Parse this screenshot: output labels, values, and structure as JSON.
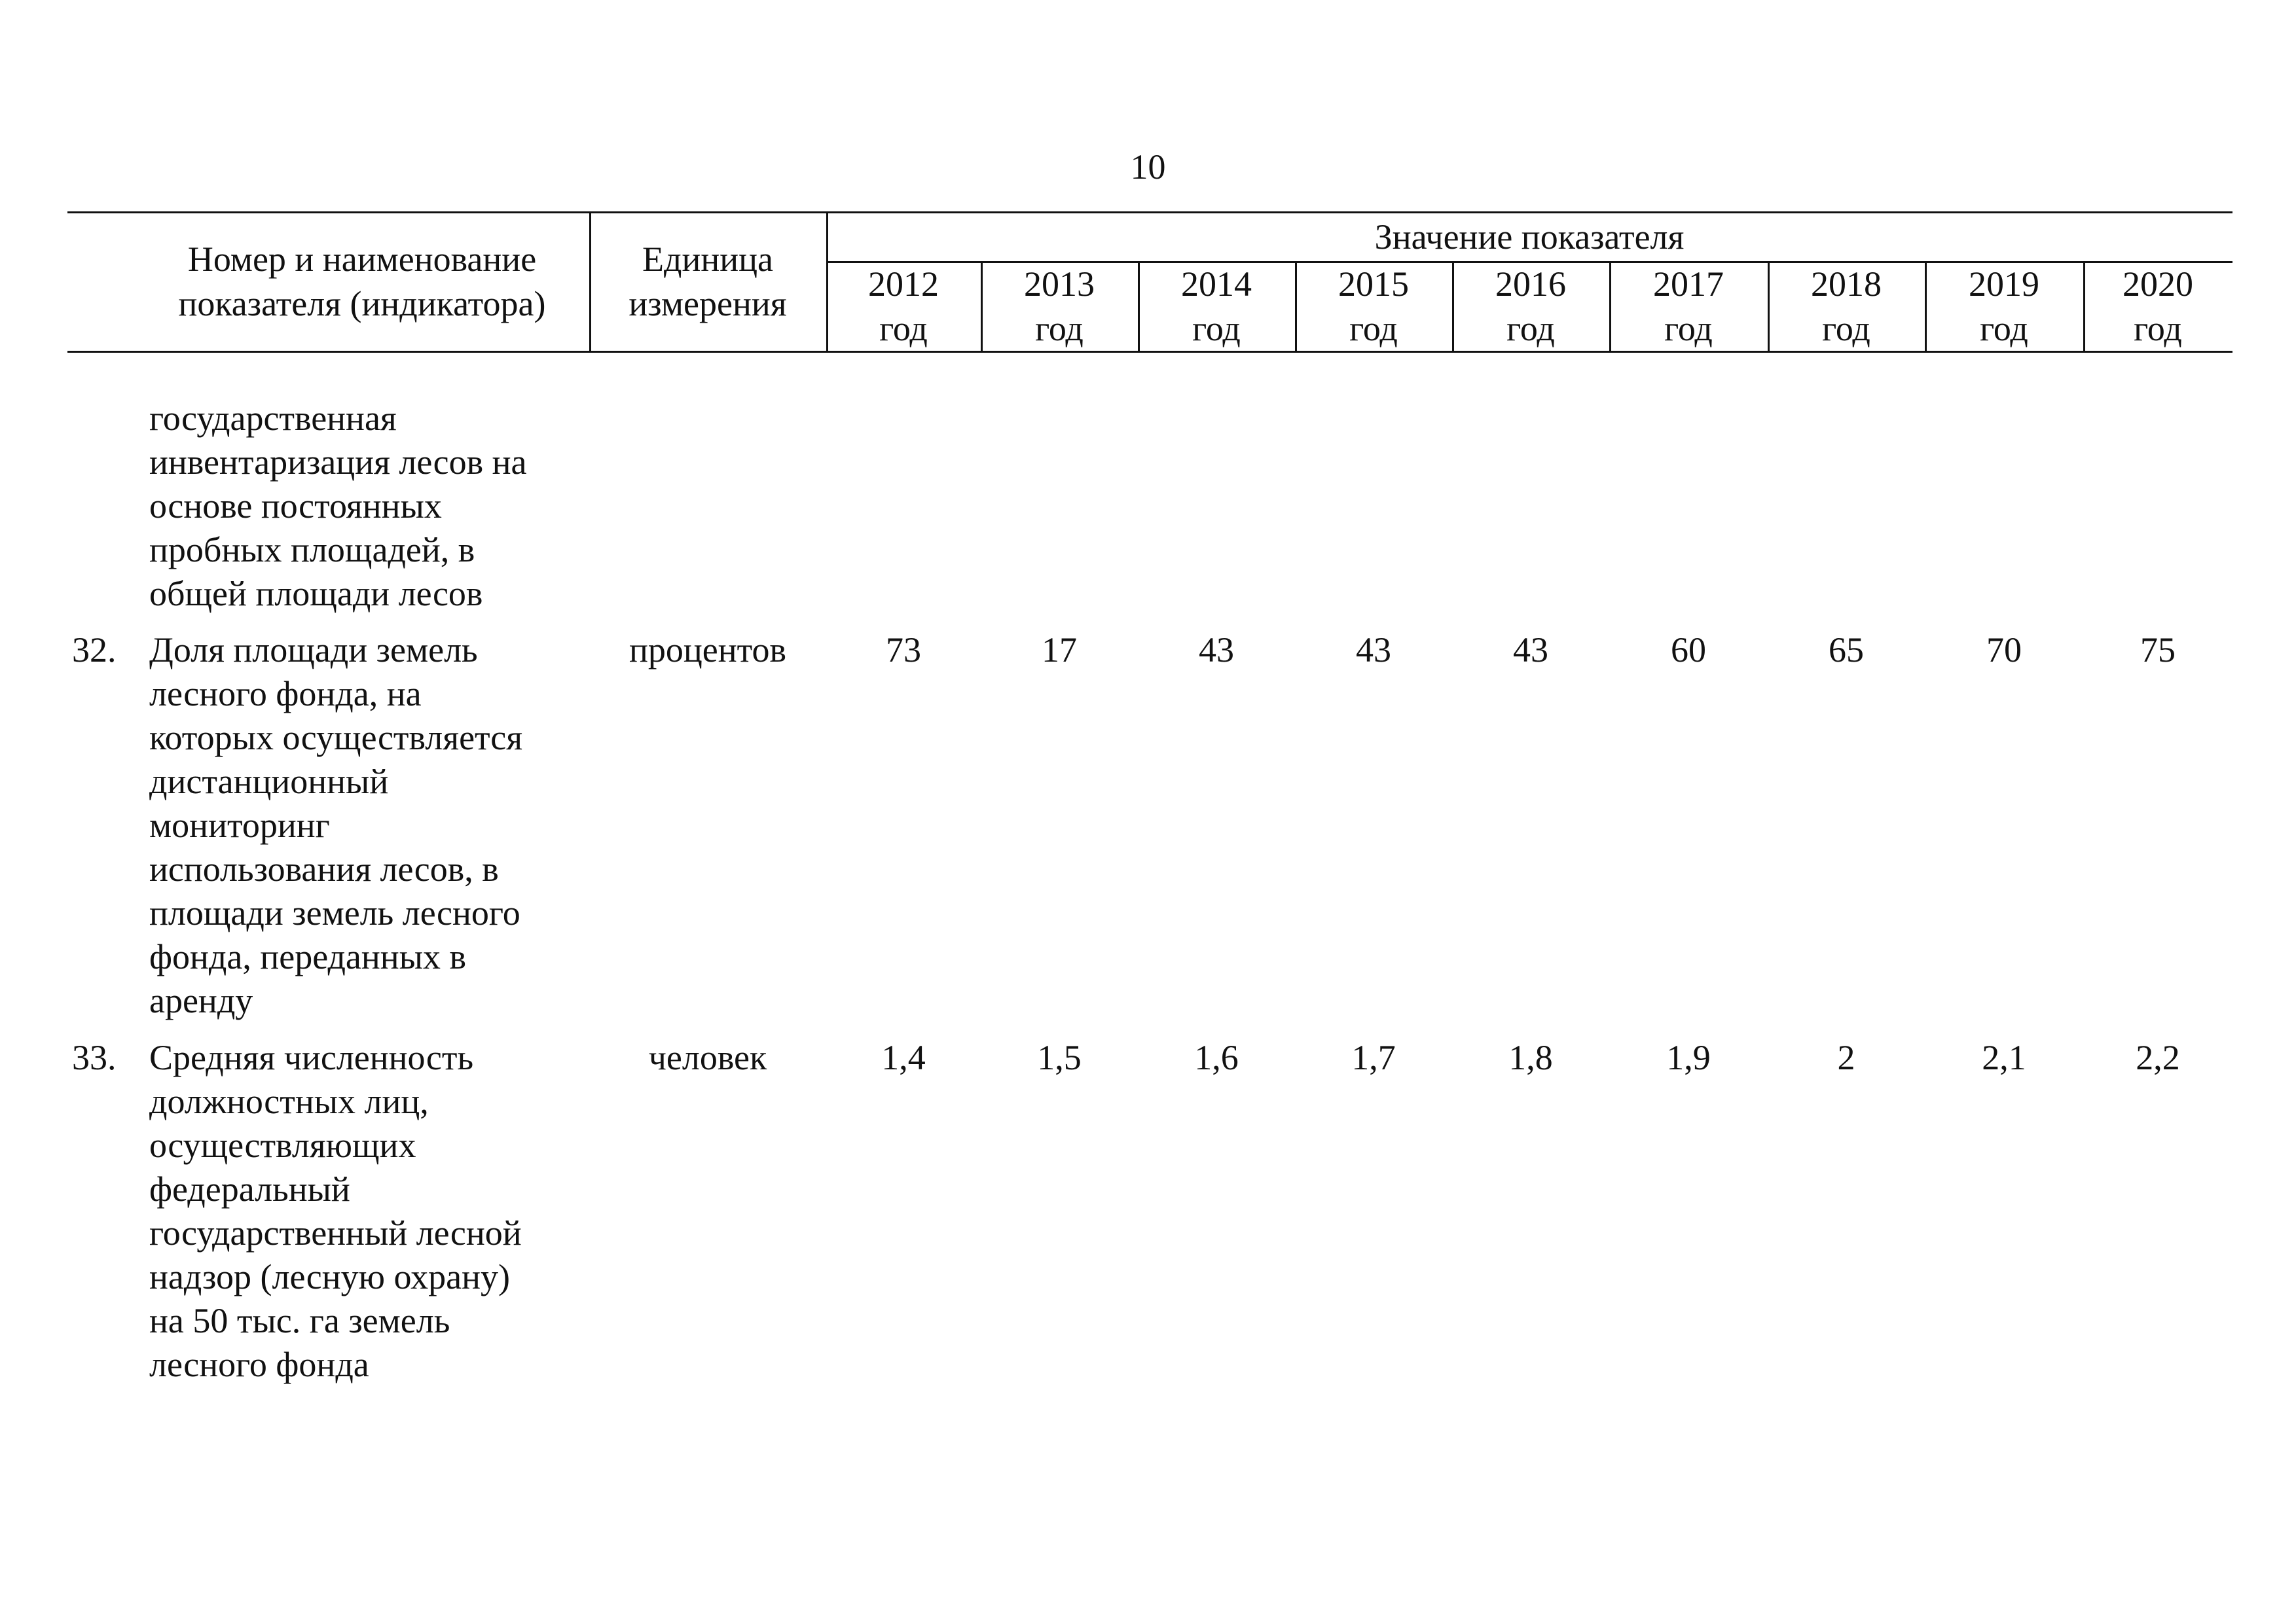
{
  "page_number": "10",
  "header": {
    "name_col": [
      "Номер и наименование",
      "показателя (индикатора)"
    ],
    "unit_col": [
      "Единица",
      "измерения"
    ],
    "value_col": "Значение показателя",
    "year_suffix": "год",
    "years": [
      "2012",
      "2013",
      "2014",
      "2015",
      "2016",
      "2017",
      "2018",
      "2019",
      "2020"
    ]
  },
  "continuation_lines": [
    "государственная",
    "инвентаризация лесов на",
    "основе постоянных",
    "пробных площадей, в",
    "общей площади лесов"
  ],
  "rows": [
    {
      "number": "32.",
      "name_lines": [
        "Доля площади земель",
        "лесного фонда, на",
        "которых осуществляется",
        "дистанционный",
        "мониторинг",
        "использования лесов, в",
        "площади земель лесного",
        "фонда, переданных в",
        "аренду"
      ],
      "unit": "процентов",
      "values": [
        "73",
        "17",
        "43",
        "43",
        "43",
        "60",
        "65",
        "70",
        "75"
      ]
    },
    {
      "number": "33.",
      "name_lines": [
        "Средняя численность",
        "должностных лиц,",
        "осуществляющих",
        "федеральный",
        "государственный лесной",
        "надзор (лесную охрану)",
        "на 50 тыс. га земель",
        "лесного фонда"
      ],
      "unit": "человек",
      "values": [
        "1,4",
        "1,5",
        "1,6",
        "1,7",
        "1,8",
        "1,9",
        "2",
        "2,1",
        "2,2"
      ]
    }
  ]
}
